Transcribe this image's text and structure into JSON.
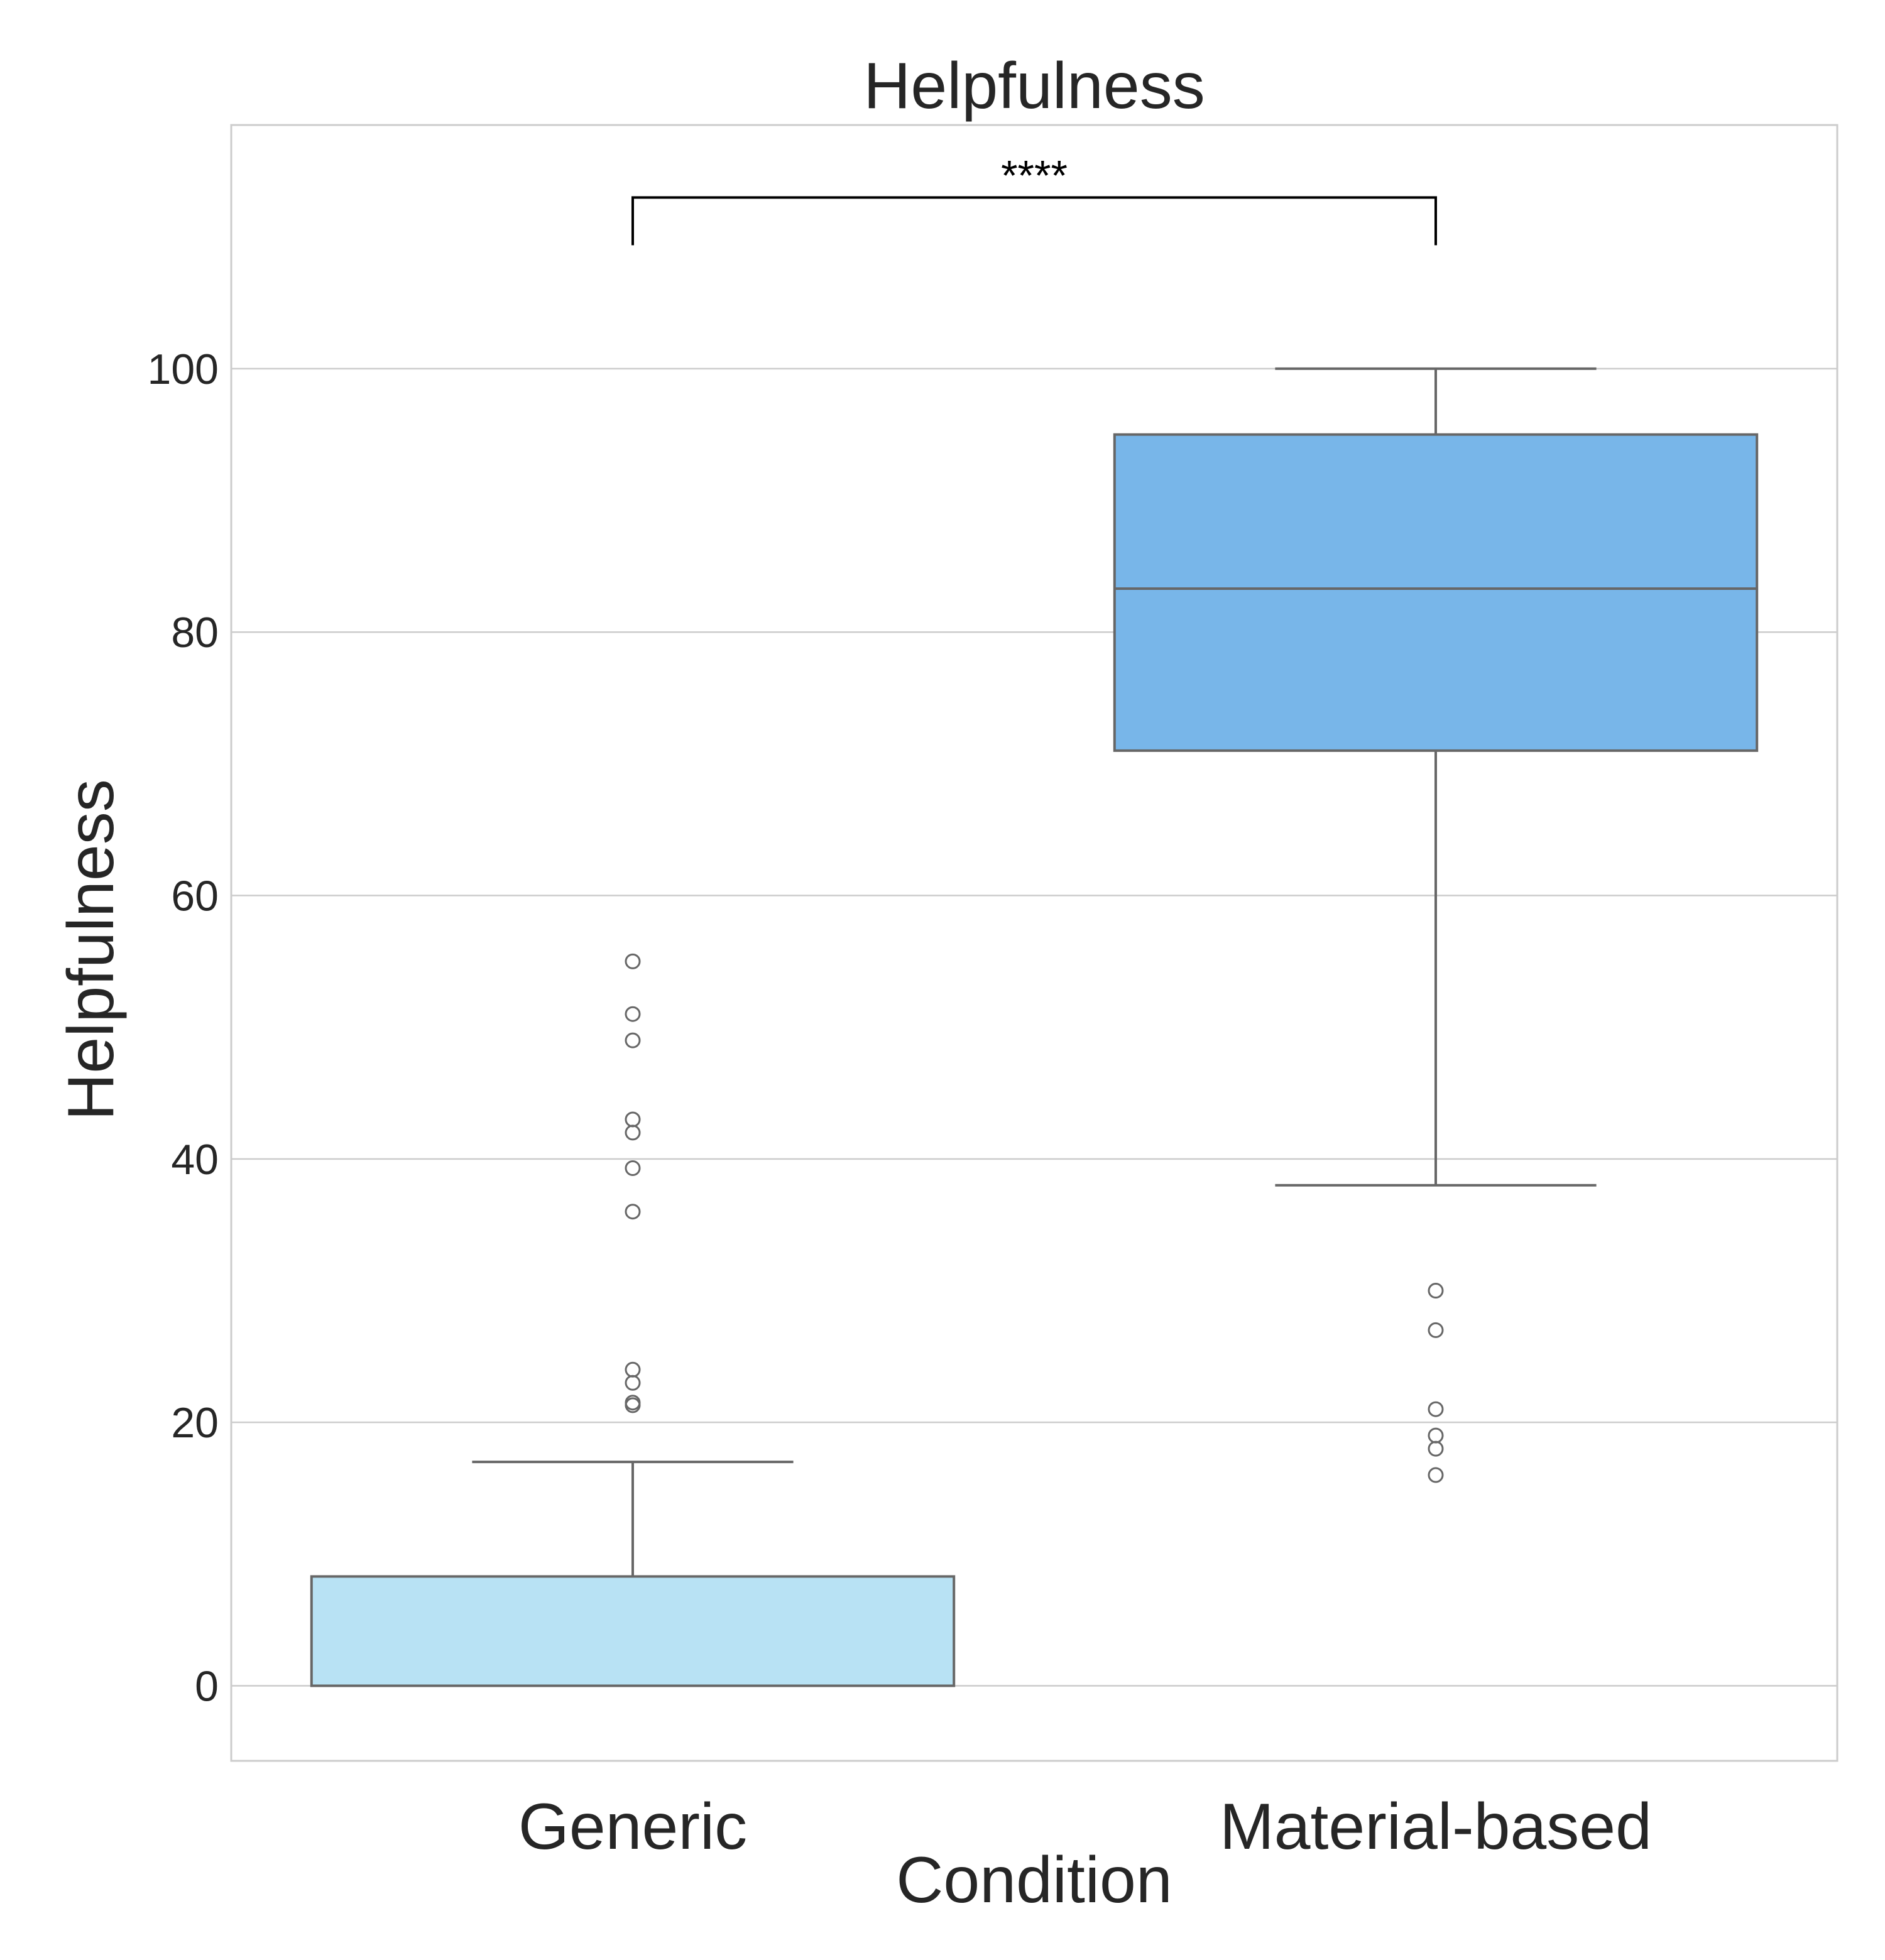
{
  "chart_data": {
    "type": "box",
    "title": "Helpfulness",
    "xlabel": "Condition",
    "ylabel": "Helpfulness",
    "ylim": [
      -5.7,
      118.5
    ],
    "yticks": [
      0,
      20,
      40,
      60,
      80,
      100
    ],
    "grid": true,
    "categories": [
      "Generic",
      "Material-based"
    ],
    "boxes": [
      {
        "name": "Generic",
        "whisker_low": 0,
        "q1": 0,
        "median": 0,
        "q3": 8.3,
        "whisker_high": 17,
        "outliers": [
          21.3,
          21.5,
          23,
          24,
          36,
          39.3,
          42,
          43,
          49,
          51,
          55
        ],
        "color": "#b8e2f4"
      },
      {
        "name": "Material-based",
        "whisker_low": 38,
        "q1": 71,
        "median": 83.3,
        "q3": 95,
        "whisker_high": 100,
        "outliers": [
          16,
          18,
          19,
          21,
          27,
          30
        ],
        "color": "#78b6e9"
      }
    ],
    "annotations": [
      {
        "text": "****",
        "between": [
          "Generic",
          "Material-based"
        ],
        "y": 113
      }
    ]
  }
}
